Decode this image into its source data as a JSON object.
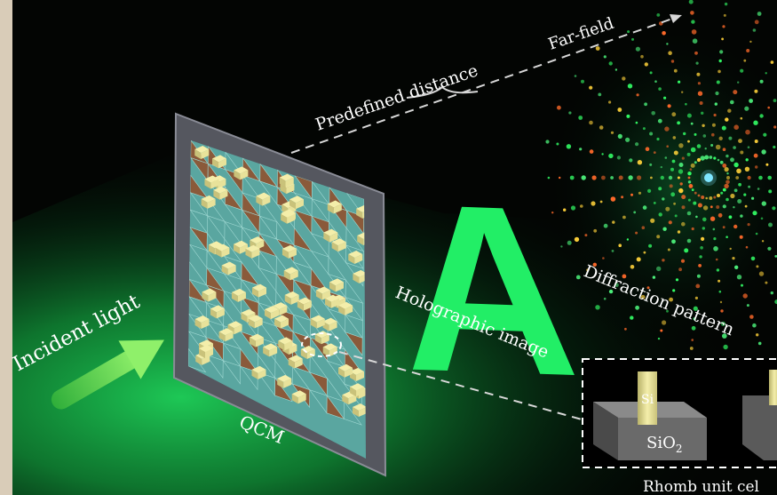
{
  "labels": {
    "incident_light": "Incident light",
    "qcm": "QCM",
    "predefined_distance": "Predefined distance",
    "far_field": "Far-field",
    "holographic_image": "Holographic image",
    "hologram_letter": "A",
    "diffraction_pattern": "Diffraction pattern",
    "unit_cell": "Rhomb unit cel",
    "si": "Si",
    "sio2_base": "SiO",
    "sio2_subscript": "2"
  },
  "colors": {
    "background": "#030503",
    "beam": "#1fd25a",
    "hologram": "#22ee66",
    "pillar": "#e8e29a",
    "tile_teal": "#5aa6a0",
    "tile_brown": "#8a5a3a",
    "frame": "#6a6c78",
    "substrate": "#6a6a6a",
    "border_left": "#d9ccb8"
  },
  "icons": {
    "arrow": "incident-arrow-icon",
    "central_spot": "central-spot-icon"
  }
}
